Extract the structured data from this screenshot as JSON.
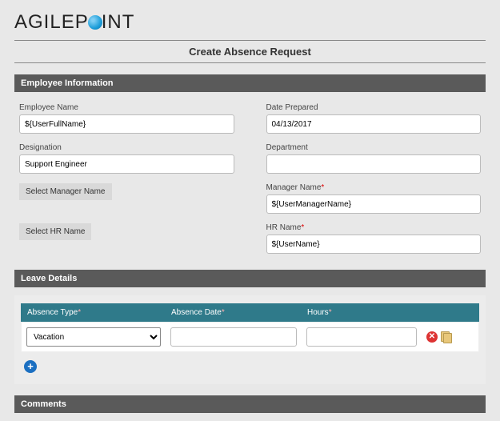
{
  "brand": {
    "part1": "AGILEP",
    "part2": "INT"
  },
  "page_title": "Create Absence Request",
  "sections": {
    "employee_info": "Employee Information",
    "leave_details": "Leave Details",
    "comments": "Comments"
  },
  "fields": {
    "employee_name": {
      "label": "Employee Name",
      "value": "${UserFullName}"
    },
    "date_prepared": {
      "label": "Date Prepared",
      "value": "04/13/2017"
    },
    "designation": {
      "label": "Designation",
      "value": "Support Engineer"
    },
    "department": {
      "label": "Department",
      "value": ""
    },
    "manager_name": {
      "label": "Manager Name",
      "value": "${UserManagerName}"
    },
    "hr_name": {
      "label": "HR Name",
      "value": "${UserName}"
    }
  },
  "buttons": {
    "select_manager": "Select Manager Name",
    "select_hr": "Select HR Name"
  },
  "table": {
    "headers": {
      "absence_type": "Absence Type",
      "absence_date": "Absence Date",
      "hours": "Hours"
    },
    "row": {
      "absence_type": "Vacation",
      "absence_date": "",
      "hours": ""
    }
  }
}
